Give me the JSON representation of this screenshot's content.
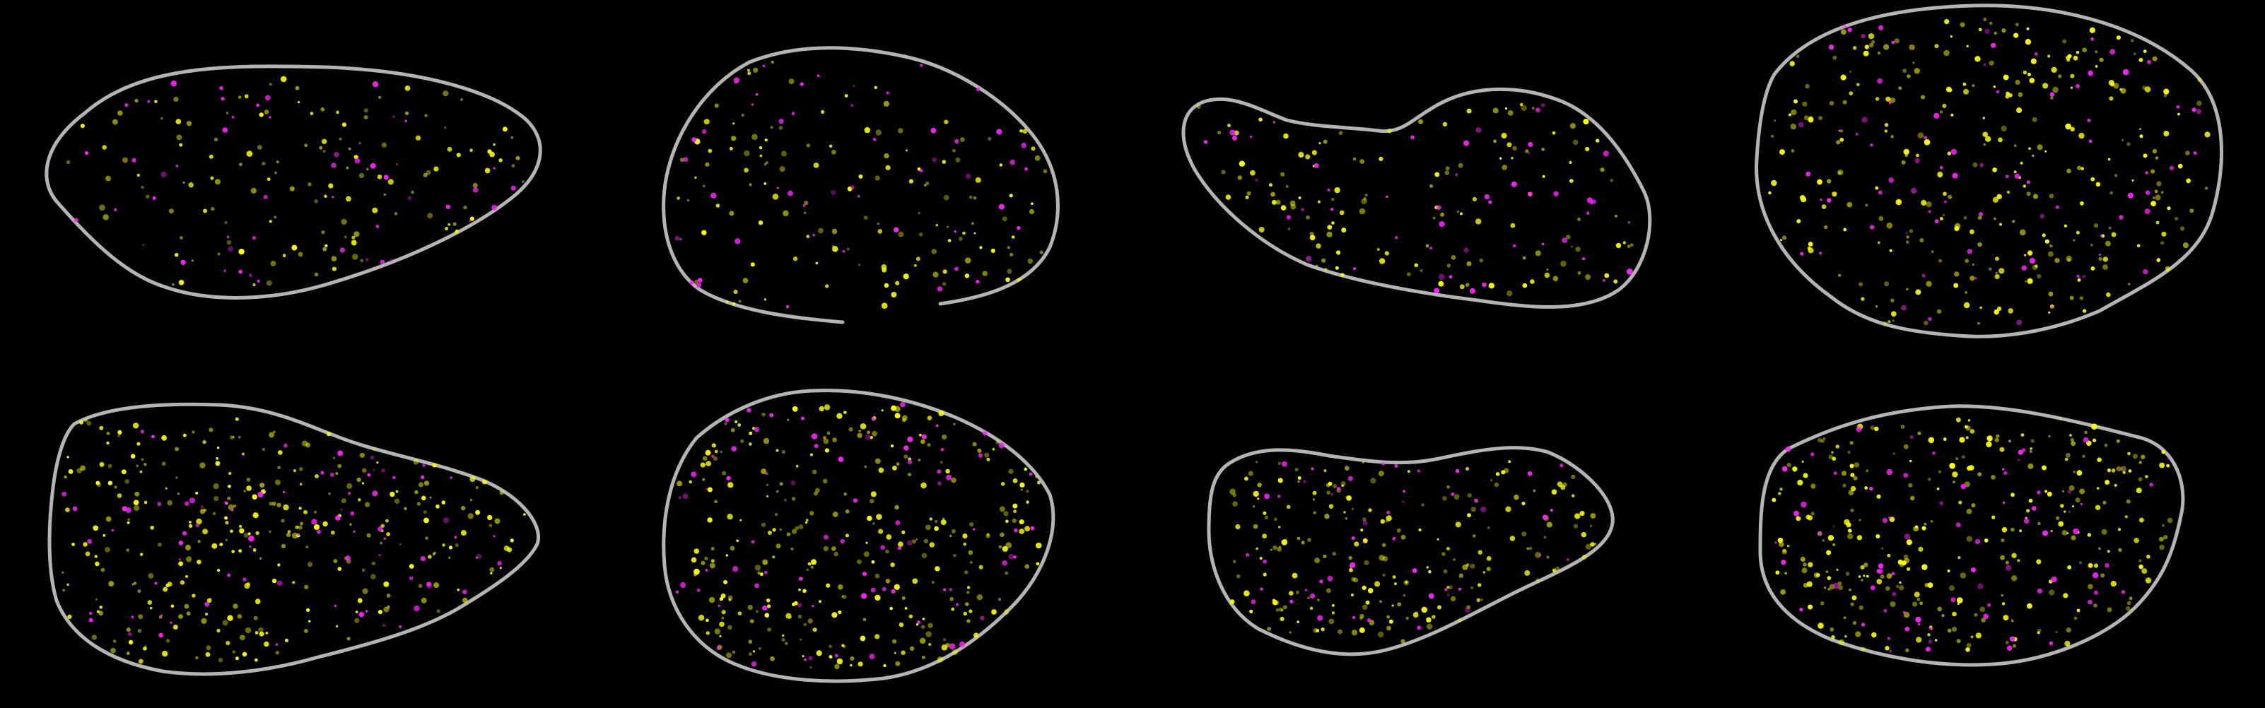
{
  "image": {
    "description_type": "fluorescence microscopy composite",
    "background_color": "#000000",
    "outline_color": "#b4b4b4",
    "channels": [
      {
        "color": "#ffff00",
        "color_name": "yellow"
      },
      {
        "color": "#ff22ff",
        "color_name": "magenta"
      }
    ],
    "panel_layout": {
      "rows": 2,
      "columns": 4
    },
    "cells": [
      {
        "id": "cell-1",
        "outline_closed": true,
        "yellow_spot_density": "low",
        "magenta_spot_density": "low"
      },
      {
        "id": "cell-2",
        "outline_closed": false,
        "yellow_spot_density": "low",
        "magenta_spot_density": "low"
      },
      {
        "id": "cell-3",
        "outline_closed": true,
        "yellow_spot_density": "low",
        "magenta_spot_density": "low"
      },
      {
        "id": "cell-4",
        "outline_closed": true,
        "yellow_spot_density": "high",
        "magenta_spot_density": "medium"
      },
      {
        "id": "cell-5",
        "outline_closed": true,
        "yellow_spot_density": "high",
        "magenta_spot_density": "medium"
      },
      {
        "id": "cell-6",
        "outline_closed": true,
        "yellow_spot_density": "high",
        "magenta_spot_density": "medium"
      },
      {
        "id": "cell-7",
        "outline_closed": true,
        "yellow_spot_density": "medium",
        "magenta_spot_density": "low"
      },
      {
        "id": "cell-8",
        "outline_closed": true,
        "yellow_spot_density": "high",
        "magenta_spot_density": "medium"
      }
    ]
  }
}
